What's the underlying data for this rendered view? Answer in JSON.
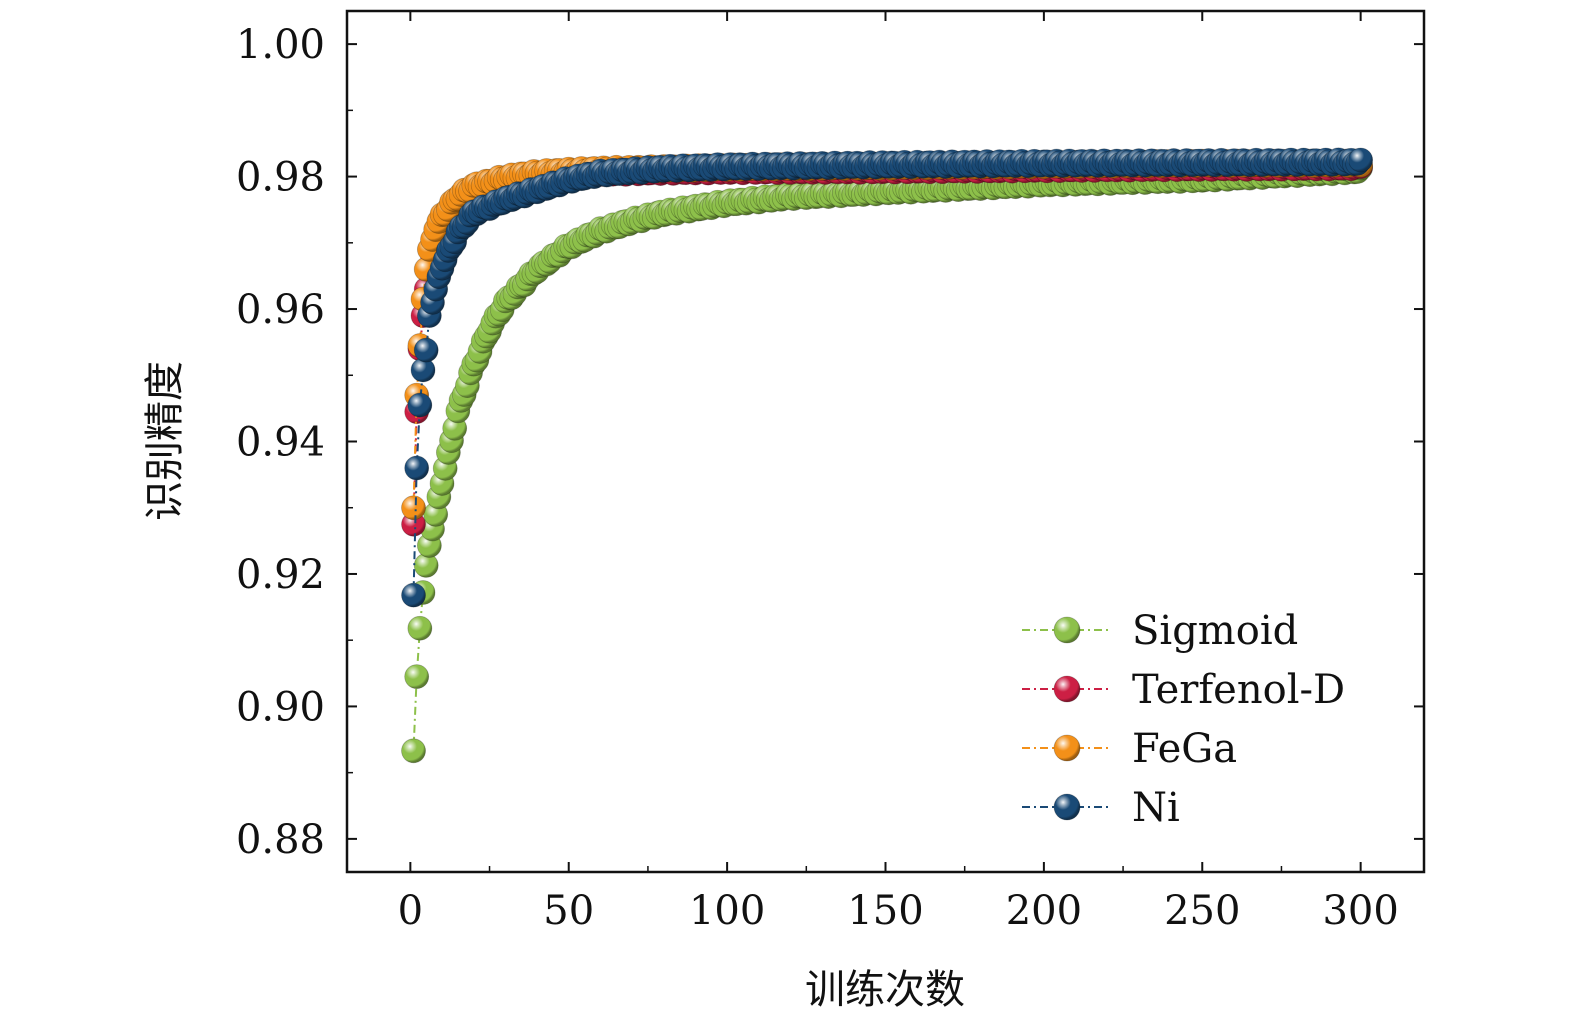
{
  "chart_data": {
    "type": "line",
    "title": "",
    "xlabel": "训练次数",
    "ylabel": "识别精度",
    "xlim": [
      -20,
      320
    ],
    "ylim": [
      0.875,
      1.005
    ],
    "xticks": [
      0,
      50,
      100,
      150,
      200,
      250,
      300
    ],
    "xtick_labels": [
      "0",
      "50",
      "100",
      "150",
      "200",
      "250",
      "300"
    ],
    "yticks": [
      0.88,
      0.9,
      0.92,
      0.94,
      0.96,
      0.98,
      1.0
    ],
    "ytick_labels": [
      "0.88",
      "0.90",
      "0.92",
      "0.94",
      "0.96",
      "0.98",
      "1.00"
    ],
    "grid": false,
    "legend_position": "bottom-right",
    "series": [
      {
        "name": "Sigmoid",
        "color": "#8dc04a",
        "x": [
          1,
          2,
          3,
          4,
          5,
          6,
          7,
          8,
          10,
          12,
          15,
          20,
          25,
          30,
          40,
          50,
          60,
          70,
          80,
          100,
          120,
          150,
          200,
          250,
          300
        ],
        "y": [
          0.8933,
          0.9045,
          0.9118,
          0.9172,
          0.9213,
          0.9243,
          0.9268,
          0.929,
          0.934,
          0.938,
          0.9445,
          0.9515,
          0.957,
          0.961,
          0.966,
          0.9695,
          0.9718,
          0.9733,
          0.9745,
          0.976,
          0.977,
          0.9778,
          0.979,
          0.9797,
          0.981
        ]
      },
      {
        "name": "Terfenol-D",
        "color": "#cc1f44",
        "x": [
          1,
          2,
          3,
          4,
          5,
          6,
          8,
          10,
          15,
          20,
          30,
          40,
          50,
          60,
          80,
          100,
          150,
          200,
          250,
          300
        ],
        "y": [
          0.9275,
          0.9445,
          0.954,
          0.959,
          0.963,
          0.966,
          0.97,
          0.9725,
          0.976,
          0.978,
          0.9795,
          0.9802,
          0.9805,
          0.9806,
          0.9808,
          0.9809,
          0.981,
          0.9812,
          0.9814,
          0.9815
        ]
      },
      {
        "name": "FeGa",
        "color": "#f39019",
        "x": [
          1,
          2,
          3,
          4,
          5,
          6,
          8,
          10,
          15,
          20,
          30,
          40,
          50,
          60,
          80,
          100,
          150,
          200,
          250,
          300
        ],
        "y": [
          0.93,
          0.947,
          0.9545,
          0.9615,
          0.966,
          0.969,
          0.972,
          0.974,
          0.977,
          0.9785,
          0.9798,
          0.9805,
          0.9808,
          0.981,
          0.9812,
          0.9814,
          0.9816,
          0.9818,
          0.982,
          0.982
        ]
      },
      {
        "name": "Ni",
        "color": "#1a4a76",
        "x": [
          1,
          2,
          3,
          4,
          5,
          6,
          8,
          10,
          15,
          20,
          30,
          40,
          50,
          60,
          80,
          100,
          150,
          200,
          250,
          300
        ],
        "y": [
          0.9168,
          0.936,
          0.9455,
          0.9508,
          0.9538,
          0.959,
          0.963,
          0.9665,
          0.9715,
          0.9745,
          0.9765,
          0.978,
          0.9795,
          0.9805,
          0.9812,
          0.9815,
          0.9818,
          0.982,
          0.9821,
          0.9822
        ]
      }
    ]
  }
}
